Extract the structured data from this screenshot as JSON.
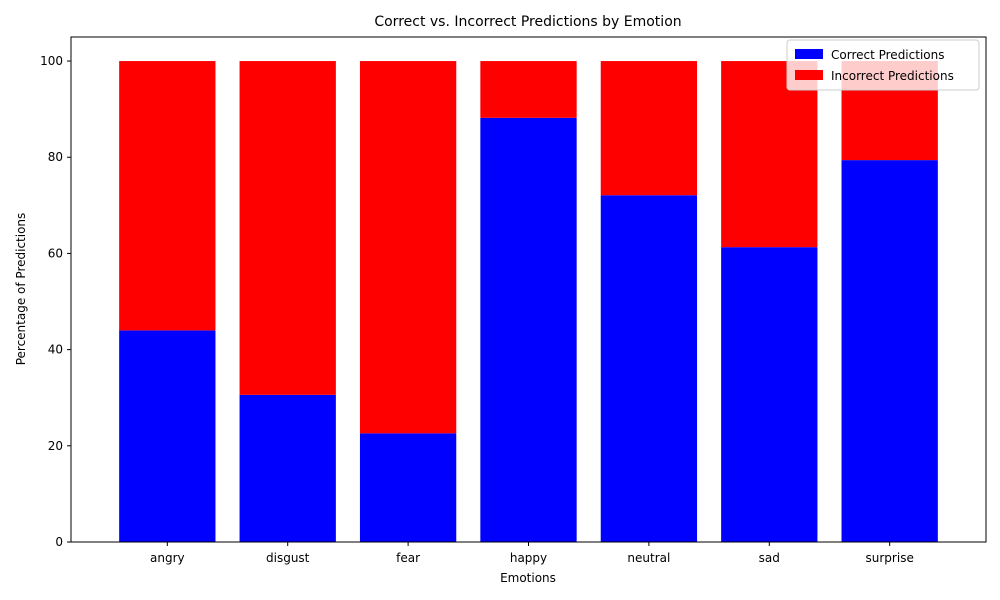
{
  "chart_data": {
    "type": "bar",
    "stacked": true,
    "title": "Correct vs. Incorrect Predictions by Emotion",
    "xlabel": "Emotions",
    "ylabel": "Percentage of Predictions",
    "categories": [
      "angry",
      "disgust",
      "fear",
      "happy",
      "neutral",
      "sad",
      "surprise"
    ],
    "series": [
      {
        "name": "Correct Predictions",
        "color": "#0000ff",
        "values": [
          44.0,
          30.6,
          22.6,
          88.2,
          72.1,
          61.3,
          79.4
        ]
      },
      {
        "name": "Incorrect Predictions",
        "color": "#ff0000",
        "values": [
          56.0,
          69.4,
          77.4,
          11.8,
          27.9,
          38.7,
          20.6
        ]
      }
    ],
    "ylim": [
      0,
      105
    ],
    "yticks": [
      0,
      20,
      40,
      60,
      80,
      100
    ],
    "grid": false,
    "legend_position": "top-right"
  }
}
